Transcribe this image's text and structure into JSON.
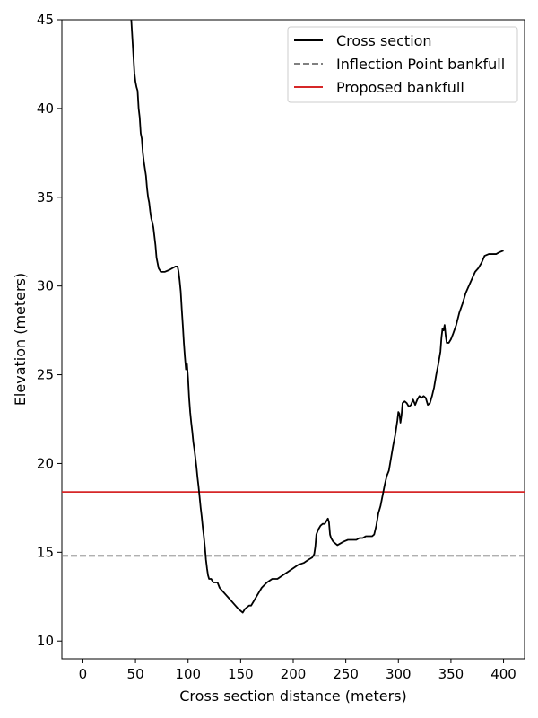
{
  "chart_data": {
    "type": "line",
    "xlabel": "Cross section distance (meters)",
    "ylabel": "Elevation (meters)",
    "xlim": [
      -20,
      420
    ],
    "ylim": [
      9,
      45
    ],
    "xticks": [
      0,
      50,
      100,
      150,
      200,
      250,
      300,
      350,
      400
    ],
    "yticks": [
      10,
      15,
      20,
      25,
      30,
      35,
      40,
      45
    ],
    "grid": false,
    "legend_position": "top-right",
    "series": [
      {
        "name": "Cross section",
        "style": "solid",
        "color": "#000000",
        "points": [
          [
            46,
            45.0
          ],
          [
            47,
            44.0
          ],
          [
            48,
            43.0
          ],
          [
            49,
            42.0
          ],
          [
            50,
            41.5
          ],
          [
            51,
            41.2
          ],
          [
            52,
            41.0
          ],
          [
            53,
            40.0
          ],
          [
            54,
            39.5
          ],
          [
            55,
            38.6
          ],
          [
            56,
            38.3
          ],
          [
            57,
            37.5
          ],
          [
            58,
            37.0
          ],
          [
            59,
            36.6
          ],
          [
            60,
            36.2
          ],
          [
            61,
            35.5
          ],
          [
            62,
            35.0
          ],
          [
            63,
            34.7
          ],
          [
            64,
            34.2
          ],
          [
            65,
            33.8
          ],
          [
            66,
            33.6
          ],
          [
            67,
            33.3
          ],
          [
            68,
            32.8
          ],
          [
            69,
            32.3
          ],
          [
            70,
            31.6
          ],
          [
            71,
            31.3
          ],
          [
            72,
            31.0
          ],
          [
            74,
            30.8
          ],
          [
            78,
            30.8
          ],
          [
            82,
            30.9
          ],
          [
            85,
            31.0
          ],
          [
            88,
            31.1
          ],
          [
            90,
            31.1
          ],
          [
            91,
            30.8
          ],
          [
            92,
            30.3
          ],
          [
            93,
            29.7
          ],
          [
            94,
            28.7
          ],
          [
            95,
            27.8
          ],
          [
            96,
            26.8
          ],
          [
            97,
            26.0
          ],
          [
            98,
            25.3
          ],
          [
            99,
            25.6
          ],
          [
            100,
            24.8
          ],
          [
            101,
            23.7
          ],
          [
            102,
            22.9
          ],
          [
            103,
            22.3
          ],
          [
            104,
            21.8
          ],
          [
            105,
            21.2
          ],
          [
            106,
            20.8
          ],
          [
            107,
            20.3
          ],
          [
            108,
            19.8
          ],
          [
            109,
            19.2
          ],
          [
            110,
            18.7
          ],
          [
            111,
            18.1
          ],
          [
            112,
            17.5
          ],
          [
            113,
            17.0
          ],
          [
            114,
            16.4
          ],
          [
            115,
            15.9
          ],
          [
            116,
            15.3
          ],
          [
            117,
            14.6
          ],
          [
            118,
            14.1
          ],
          [
            119,
            13.7
          ],
          [
            120,
            13.5
          ],
          [
            122,
            13.5
          ],
          [
            124,
            13.3
          ],
          [
            126,
            13.3
          ],
          [
            128,
            13.3
          ],
          [
            130,
            13.0
          ],
          [
            133,
            12.8
          ],
          [
            136,
            12.6
          ],
          [
            139,
            12.4
          ],
          [
            142,
            12.2
          ],
          [
            145,
            12.0
          ],
          [
            148,
            11.8
          ],
          [
            150,
            11.7
          ],
          [
            152,
            11.6
          ],
          [
            154,
            11.8
          ],
          [
            156,
            11.9
          ],
          [
            158,
            12.0
          ],
          [
            160,
            12.0
          ],
          [
            163,
            12.3
          ],
          [
            166,
            12.6
          ],
          [
            170,
            13.0
          ],
          [
            175,
            13.3
          ],
          [
            180,
            13.5
          ],
          [
            185,
            13.5
          ],
          [
            190,
            13.7
          ],
          [
            195,
            13.9
          ],
          [
            200,
            14.1
          ],
          [
            205,
            14.3
          ],
          [
            210,
            14.4
          ],
          [
            215,
            14.6
          ],
          [
            218,
            14.7
          ],
          [
            220,
            14.9
          ],
          [
            221,
            15.3
          ],
          [
            222,
            16.0
          ],
          [
            224,
            16.3
          ],
          [
            226,
            16.5
          ],
          [
            228,
            16.6
          ],
          [
            230,
            16.6
          ],
          [
            232,
            16.8
          ],
          [
            233,
            16.9
          ],
          [
            234,
            16.7
          ],
          [
            235,
            16.0
          ],
          [
            236,
            15.8
          ],
          [
            238,
            15.6
          ],
          [
            240,
            15.5
          ],
          [
            242,
            15.4
          ],
          [
            245,
            15.5
          ],
          [
            248,
            15.6
          ],
          [
            252,
            15.7
          ],
          [
            256,
            15.7
          ],
          [
            260,
            15.7
          ],
          [
            263,
            15.8
          ],
          [
            266,
            15.8
          ],
          [
            269,
            15.9
          ],
          [
            272,
            15.9
          ],
          [
            275,
            15.9
          ],
          [
            277,
            16.0
          ],
          [
            279,
            16.5
          ],
          [
            281,
            17.2
          ],
          [
            283,
            17.6
          ],
          [
            285,
            18.2
          ],
          [
            287,
            18.8
          ],
          [
            289,
            19.3
          ],
          [
            291,
            19.6
          ],
          [
            293,
            20.3
          ],
          [
            295,
            21.0
          ],
          [
            297,
            21.6
          ],
          [
            299,
            22.4
          ],
          [
            300,
            22.9
          ],
          [
            301,
            22.8
          ],
          [
            302,
            22.3
          ],
          [
            303,
            22.7
          ],
          [
            304,
            23.4
          ],
          [
            306,
            23.5
          ],
          [
            308,
            23.4
          ],
          [
            310,
            23.2
          ],
          [
            312,
            23.3
          ],
          [
            314,
            23.6
          ],
          [
            316,
            23.3
          ],
          [
            318,
            23.6
          ],
          [
            320,
            23.8
          ],
          [
            322,
            23.7
          ],
          [
            324,
            23.8
          ],
          [
            326,
            23.7
          ],
          [
            328,
            23.3
          ],
          [
            330,
            23.4
          ],
          [
            332,
            23.8
          ],
          [
            334,
            24.3
          ],
          [
            336,
            25.0
          ],
          [
            338,
            25.6
          ],
          [
            340,
            26.3
          ],
          [
            341,
            27.1
          ],
          [
            342,
            27.6
          ],
          [
            343,
            27.5
          ],
          [
            344,
            27.8
          ],
          [
            345,
            27.2
          ],
          [
            346,
            26.8
          ],
          [
            348,
            26.8
          ],
          [
            350,
            27.0
          ],
          [
            352,
            27.3
          ],
          [
            355,
            27.8
          ],
          [
            358,
            28.5
          ],
          [
            361,
            29.0
          ],
          [
            364,
            29.6
          ],
          [
            367,
            30.0
          ],
          [
            370,
            30.4
          ],
          [
            373,
            30.8
          ],
          [
            376,
            31.0
          ],
          [
            379,
            31.3
          ],
          [
            382,
            31.7
          ],
          [
            386,
            31.8
          ],
          [
            390,
            31.8
          ],
          [
            393,
            31.8
          ],
          [
            396,
            31.9
          ],
          [
            400,
            32.0
          ]
        ]
      },
      {
        "name": "Inflection Point bankfull",
        "style": "dashed",
        "color": "#808080",
        "y": 14.8
      },
      {
        "name": "Proposed bankfull",
        "style": "solid",
        "color": "#d62728",
        "y": 18.4
      }
    ]
  }
}
